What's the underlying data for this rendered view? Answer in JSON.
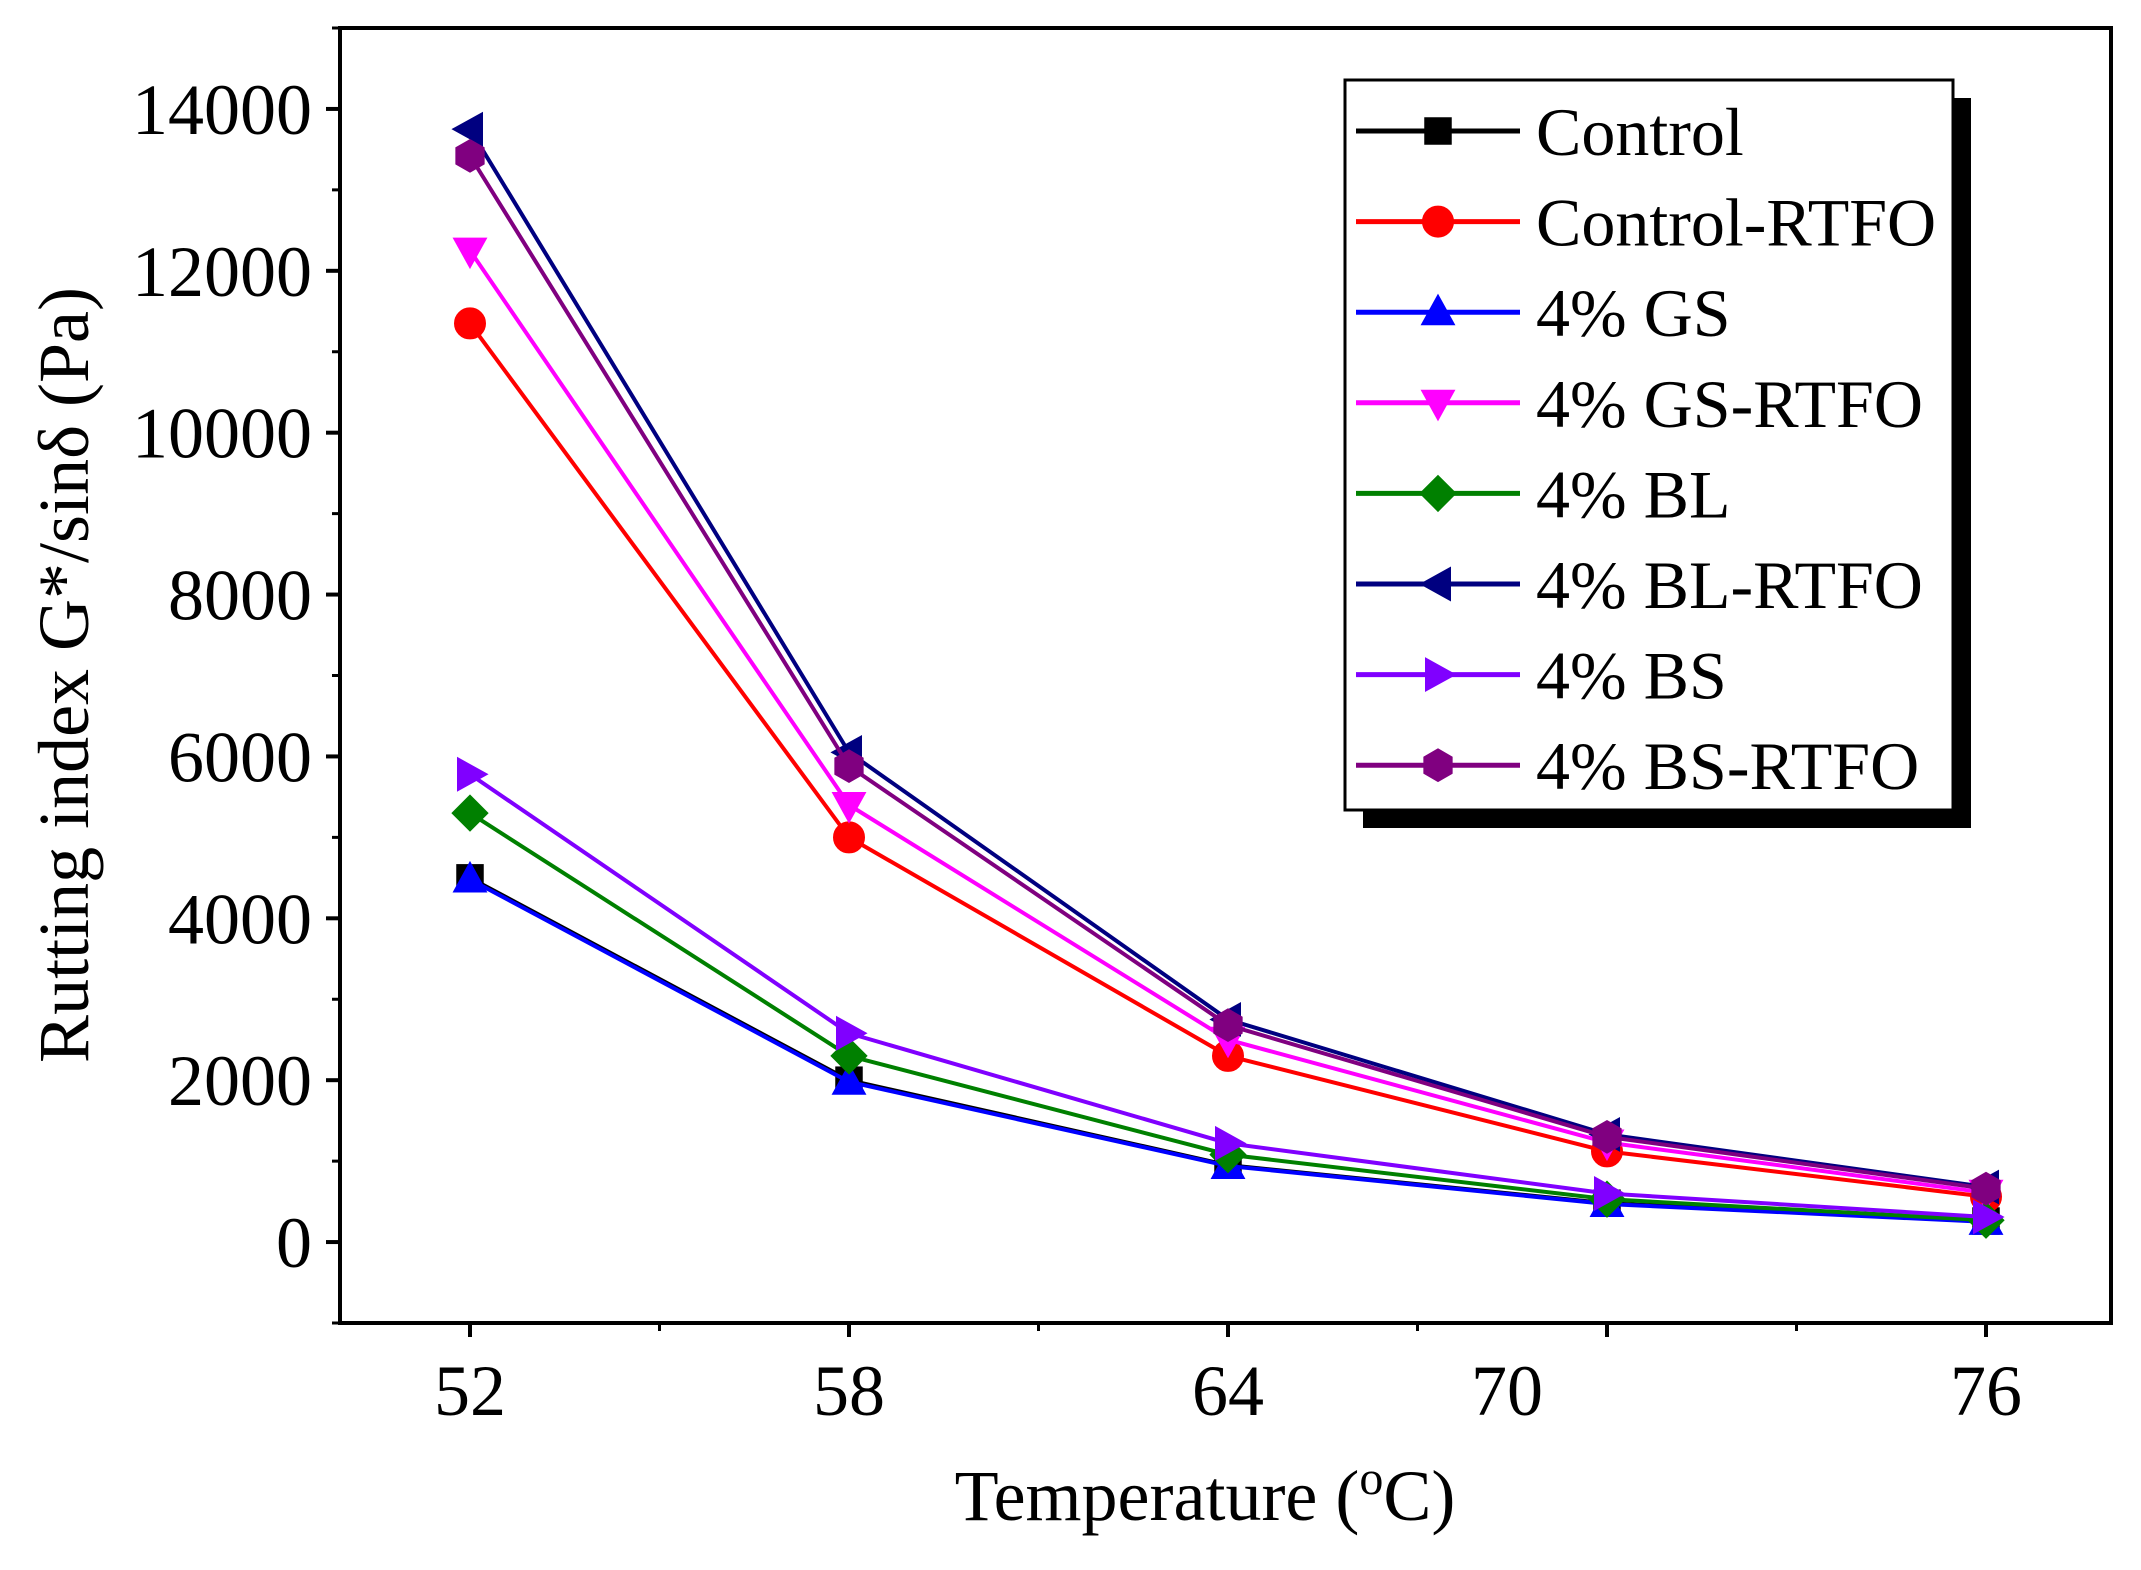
{
  "chart_data": {
    "type": "line",
    "title": "",
    "xlabel": "Temperature (°C)",
    "xlabel_parts": {
      "pre": "Temperature (",
      "sup": "o",
      "post": "C)"
    },
    "ylabel": "Rutting index G*/sinδ (Pa)",
    "x": [
      52,
      58,
      64,
      70,
      76
    ],
    "x_tick_labels": [
      "52",
      "58",
      "64",
      "70",
      "76"
    ],
    "x_positions": [
      0,
      1,
      2,
      3,
      4
    ],
    "y_ticks": [
      0,
      2000,
      4000,
      6000,
      8000,
      10000,
      12000,
      14000
    ],
    "y_tick_labels": [
      "0",
      "2000",
      "4000",
      "6000",
      "8000",
      "10000",
      "12000",
      "14000"
    ],
    "ylim": [
      -1000,
      15000
    ],
    "legend_position": "top-right",
    "series": [
      {
        "name": "Control",
        "color": "#000000",
        "marker": "square",
        "values": [
          4500,
          2000,
          950,
          480,
          260
        ]
      },
      {
        "name": "Control-RTFO",
        "color": "#ff0000",
        "marker": "circle",
        "values": [
          11350,
          5000,
          2300,
          1120,
          560
        ]
      },
      {
        "name": "4% GS",
        "color": "#0000ff",
        "marker": "triangle-up",
        "values": [
          4480,
          1980,
          940,
          470,
          250
        ]
      },
      {
        "name": "4% GS-RTFO",
        "color": "#ff00ff",
        "marker": "triangle-down",
        "values": [
          12250,
          5400,
          2500,
          1230,
          610
        ]
      },
      {
        "name": "4% BL",
        "color": "#008000",
        "marker": "diamond",
        "values": [
          5300,
          2300,
          1080,
          530,
          270
        ]
      },
      {
        "name": "4% BL-RTFO",
        "color": "#000080",
        "marker": "triangle-left",
        "values": [
          13750,
          6050,
          2750,
          1330,
          680
        ]
      },
      {
        "name": "4% BS",
        "color": "#8000ff",
        "marker": "triangle-right",
        "values": [
          5780,
          2580,
          1220,
          600,
          310
        ]
      },
      {
        "name": "4% BS-RTFO",
        "color": "#800080",
        "marker": "hexagon",
        "values": [
          13420,
          5880,
          2680,
          1300,
          660
        ]
      }
    ]
  }
}
